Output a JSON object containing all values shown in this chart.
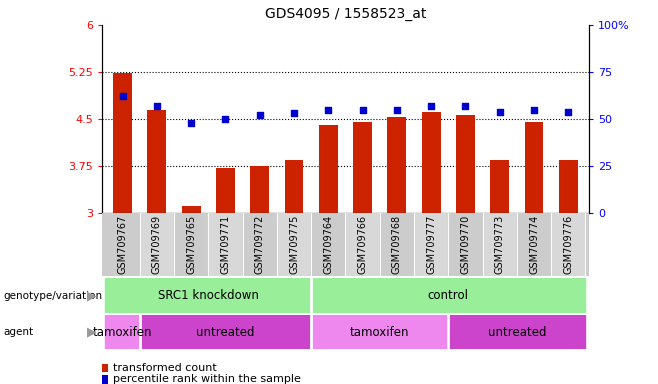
{
  "title": "GDS4095 / 1558523_at",
  "samples": [
    "GSM709767",
    "GSM709769",
    "GSM709765",
    "GSM709771",
    "GSM709772",
    "GSM709775",
    "GSM709764",
    "GSM709766",
    "GSM709768",
    "GSM709777",
    "GSM709770",
    "GSM709773",
    "GSM709774",
    "GSM709776"
  ],
  "bar_values": [
    5.24,
    4.64,
    3.12,
    3.72,
    3.75,
    3.85,
    4.41,
    4.46,
    4.53,
    4.62,
    4.56,
    3.85,
    4.45,
    3.85
  ],
  "dot_values": [
    62,
    57,
    48,
    50,
    52,
    53,
    55,
    55,
    55,
    57,
    57,
    54,
    55,
    54
  ],
  "bar_color": "#cc2200",
  "dot_color": "#0000cc",
  "ylim_left": [
    3,
    6
  ],
  "ylim_right": [
    0,
    100
  ],
  "yticks_left": [
    3,
    3.75,
    4.5,
    5.25,
    6
  ],
  "yticks_right": [
    0,
    25,
    50,
    75,
    100
  ],
  "ytick_labels_left": [
    "3",
    "3.75",
    "4.5",
    "5.25",
    "6"
  ],
  "ytick_labels_right": [
    "0",
    "25",
    "50",
    "75",
    "100%"
  ],
  "hlines": [
    3.75,
    4.5,
    5.25
  ],
  "genotype_color": "#99ee99",
  "agent_tamoxifen_color": "#ee88ee",
  "agent_untreated_color": "#cc44cc",
  "legend_bar_label": "transformed count",
  "legend_dot_label": "percentile rank within the sample",
  "xlabel_bg": "#cccccc",
  "background_color": "#ffffff"
}
